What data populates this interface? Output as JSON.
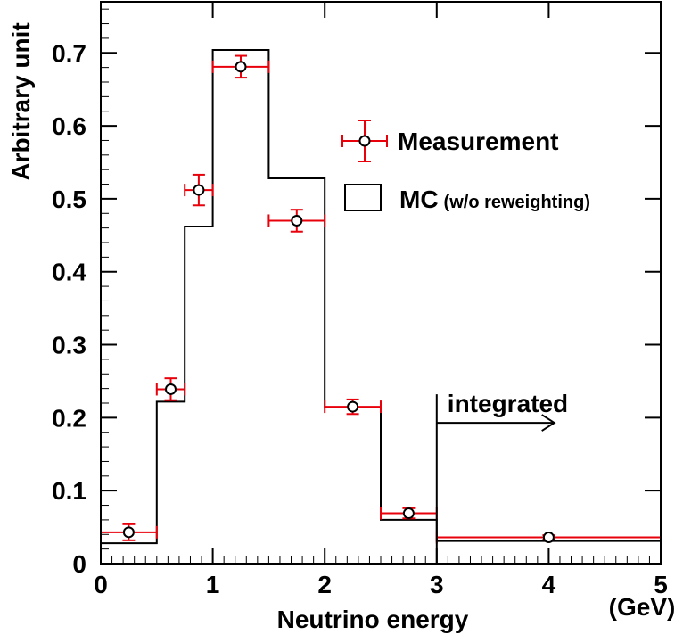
{
  "chart_data": {
    "type": "bar",
    "title": "",
    "xlabel": "Neutrino energy",
    "xunit": "(GeV)",
    "ylabel": "Arbitrary unit",
    "xlim": [
      0,
      5
    ],
    "ylim": [
      0,
      0.77
    ],
    "x_ticks": [
      0,
      1,
      2,
      3,
      4,
      5
    ],
    "x_tick_labels": [
      "0",
      "1",
      "2",
      "3",
      "4",
      "5"
    ],
    "y_ticks": [
      0,
      0.1,
      0.2,
      0.3,
      0.4,
      0.5,
      0.6,
      0.7
    ],
    "y_tick_labels": [
      "0",
      "0.1",
      "0.2",
      "0.3",
      "0.4",
      "0.5",
      "0.6",
      "0.7"
    ],
    "mc_histogram": {
      "name": "MC",
      "name_suffix": "(w/o reweighting)",
      "bin_edges": [
        0,
        0.5,
        0.75,
        1.0,
        1.5,
        2.0,
        2.5,
        3.0,
        5.0
      ],
      "values": [
        0.028,
        0.222,
        0.462,
        0.704,
        0.528,
        0.214,
        0.06,
        0.031
      ]
    },
    "measurement": {
      "name": "Measurement",
      "points": [
        {
          "x": 0.25,
          "xlo": 0.0,
          "xhi": 0.5,
          "y": 0.043,
          "yerr": 0.011
        },
        {
          "x": 0.625,
          "xlo": 0.5,
          "xhi": 0.75,
          "y": 0.239,
          "yerr": 0.015
        },
        {
          "x": 0.875,
          "xlo": 0.75,
          "xhi": 1.0,
          "y": 0.512,
          "yerr": 0.021
        },
        {
          "x": 1.25,
          "xlo": 1.0,
          "xhi": 1.5,
          "y": 0.681,
          "yerr": 0.015
        },
        {
          "x": 1.75,
          "xlo": 1.5,
          "xhi": 2.0,
          "y": 0.47,
          "yerr": 0.015
        },
        {
          "x": 2.25,
          "xlo": 2.0,
          "xhi": 2.5,
          "y": 0.215,
          "yerr": 0.01
        },
        {
          "x": 2.75,
          "xlo": 2.5,
          "xhi": 3.0,
          "y": 0.069,
          "yerr": 0.007
        },
        {
          "x": 4.0,
          "xlo": 3.0,
          "xhi": 5.0,
          "y": 0.036,
          "yerr": 0.003
        }
      ]
    },
    "annotation": {
      "text": "integrated",
      "from_x": 3.0,
      "y_marker_top": 0.232,
      "arrow_y": 0.193,
      "arrow_to_x": 4.05
    },
    "legend_position": "top-right",
    "colors": {
      "error_bar": "#e8000b",
      "line": "#000000",
      "background": "#ffffff"
    }
  }
}
